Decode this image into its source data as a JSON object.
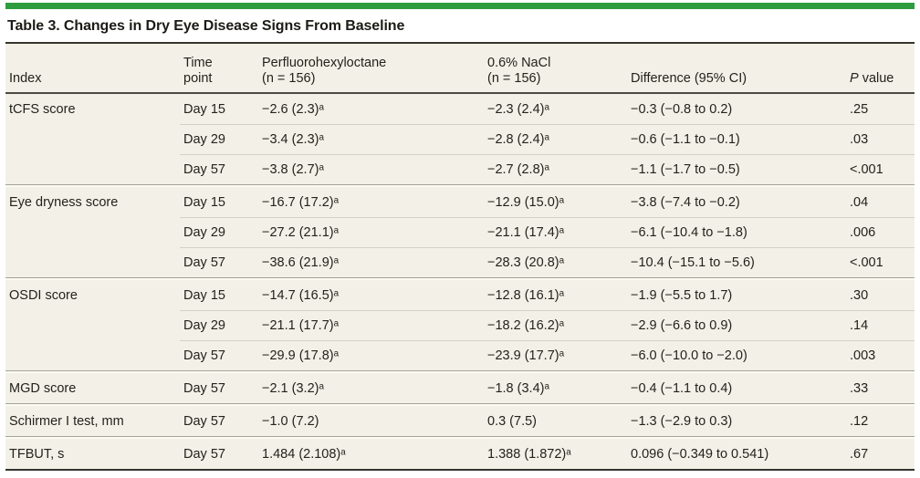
{
  "title": "Table 3. Changes in Dry Eye Disease Signs From Baseline",
  "accent_color": "#2e9c3f",
  "table_background_color": "#f3f1e7",
  "header": {
    "index": "Index",
    "time_point": {
      "line1": "Time",
      "line2": "point"
    },
    "drug": {
      "line1": "Perfluorohexyloctane",
      "line2": "(n = 156)"
    },
    "nacl": {
      "line1": "0.6% NaCl",
      "line2": "(n = 156)"
    },
    "difference": "Difference (95% CI)",
    "p_italic": "P",
    "p_rest": " value"
  },
  "groups": [
    {
      "index": "tCFS score",
      "rows": [
        {
          "time": "Day 15",
          "drug": "−2.6 (2.3)ᵃ",
          "nacl": "−2.3 (2.4)ᵃ",
          "diff": "−0.3 (−0.8 to 0.2)",
          "p": ".25"
        },
        {
          "time": "Day 29",
          "drug": "−3.4 (2.3)ᵃ",
          "nacl": "−2.8 (2.4)ᵃ",
          "diff": "−0.6 (−1.1 to −0.1)",
          "p": ".03"
        },
        {
          "time": "Day 57",
          "drug": "−3.8 (2.7)ᵃ",
          "nacl": "−2.7 (2.8)ᵃ",
          "diff": "−1.1 (−1.7 to −0.5)",
          "p": "<.001"
        }
      ]
    },
    {
      "index": "Eye dryness score",
      "rows": [
        {
          "time": "Day 15",
          "drug": "−16.7 (17.2)ᵃ",
          "nacl": "−12.9 (15.0)ᵃ",
          "diff": "−3.8 (−7.4 to −0.2)",
          "p": ".04"
        },
        {
          "time": "Day 29",
          "drug": "−27.2 (21.1)ᵃ",
          "nacl": "−21.1 (17.4)ᵃ",
          "diff": "−6.1 (−10.4 to −1.8)",
          "p": ".006"
        },
        {
          "time": "Day 57",
          "drug": "−38.6 (21.9)ᵃ",
          "nacl": "−28.3 (20.8)ᵃ",
          "diff": "−10.4 (−15.1 to −5.6)",
          "p": "<.001"
        }
      ]
    },
    {
      "index": "OSDI score",
      "rows": [
        {
          "time": "Day 15",
          "drug": "−14.7 (16.5)ᵃ",
          "nacl": "−12.8 (16.1)ᵃ",
          "diff": "−1.9 (−5.5 to 1.7)",
          "p": ".30"
        },
        {
          "time": "Day 29",
          "drug": "−21.1 (17.7)ᵃ",
          "nacl": "−18.2 (16.2)ᵃ",
          "diff": "−2.9 (−6.6 to 0.9)",
          "p": ".14"
        },
        {
          "time": "Day 57",
          "drug": "−29.9 (17.8)ᵃ",
          "nacl": "−23.9 (17.7)ᵃ",
          "diff": "−6.0 (−10.0 to −2.0)",
          "p": ".003"
        }
      ]
    },
    {
      "index": "MGD score",
      "rows": [
        {
          "time": "Day 57",
          "drug": "−2.1 (3.2)ᵃ",
          "nacl": "−1.8 (3.4)ᵃ",
          "diff": "−0.4 (−1.1 to 0.4)",
          "p": ".33"
        }
      ]
    },
    {
      "index": "Schirmer I test, mm",
      "rows": [
        {
          "time": "Day 57",
          "drug": "−1.0 (7.2)",
          "nacl": "0.3 (7.5)",
          "diff": "−1.3 (−2.9 to 0.3)",
          "p": ".12"
        }
      ]
    },
    {
      "index": "TFBUT, s",
      "rows": [
        {
          "time": "Day 57",
          "drug": "1.484 (2.108)ᵃ",
          "nacl": "1.388 (1.872)ᵃ",
          "diff": "0.096 (−0.349 to 0.541)",
          "p": ".67"
        }
      ]
    }
  ]
}
